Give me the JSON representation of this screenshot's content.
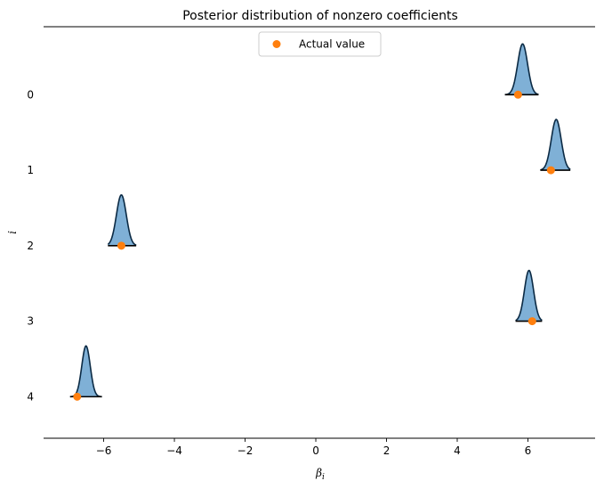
{
  "chart_data": {
    "type": "ridge",
    "title": "Posterior distribution of nonzero coefficients",
    "xlabel": "β_i",
    "ylabel": "i",
    "xlim": [
      -7.7,
      7.9
    ],
    "ylim": [
      -0.9,
      4.55
    ],
    "x_ticks": [
      {
        "value": -6,
        "label": "−6"
      },
      {
        "value": -4,
        "label": "−4"
      },
      {
        "value": -2,
        "label": "−2"
      },
      {
        "value": 0,
        "label": "0"
      },
      {
        "value": 2,
        "label": "2"
      },
      {
        "value": 4,
        "label": "4"
      },
      {
        "value": 6,
        "label": "6"
      }
    ],
    "y_ticks": [
      {
        "value": 0,
        "label": "0"
      },
      {
        "value": 1,
        "label": "1"
      },
      {
        "value": 2,
        "label": "2"
      },
      {
        "value": 3,
        "label": "3"
      },
      {
        "value": 4,
        "label": "4"
      }
    ],
    "legend": {
      "placement": "top-center",
      "entries": [
        {
          "label": "Actual value",
          "color": "#ff7f0e"
        }
      ]
    },
    "density_fill_color": "#7fb0d6",
    "density_line_color": "#0b2a44",
    "marker_color": "#ff7f0e",
    "series": [
      {
        "index": 0,
        "actual": 5.72,
        "posterior_mean": 5.85,
        "posterior_sd": 0.14,
        "x_min": 5.35,
        "x_max": 6.3
      },
      {
        "index": 1,
        "actual": 6.65,
        "posterior_mean": 6.8,
        "posterior_sd": 0.14,
        "x_min": 6.35,
        "x_max": 7.2
      },
      {
        "index": 2,
        "actual": -5.5,
        "posterior_mean": -5.5,
        "posterior_sd": 0.14,
        "x_min": -5.88,
        "x_max": -5.08
      },
      {
        "index": 3,
        "actual": 6.12,
        "posterior_mean": 6.03,
        "posterior_sd": 0.13,
        "x_min": 5.65,
        "x_max": 6.4
      },
      {
        "index": 4,
        "actual": -6.75,
        "posterior_mean": -6.5,
        "posterior_sd": 0.12,
        "x_min": -6.95,
        "x_max": -6.05
      }
    ]
  }
}
